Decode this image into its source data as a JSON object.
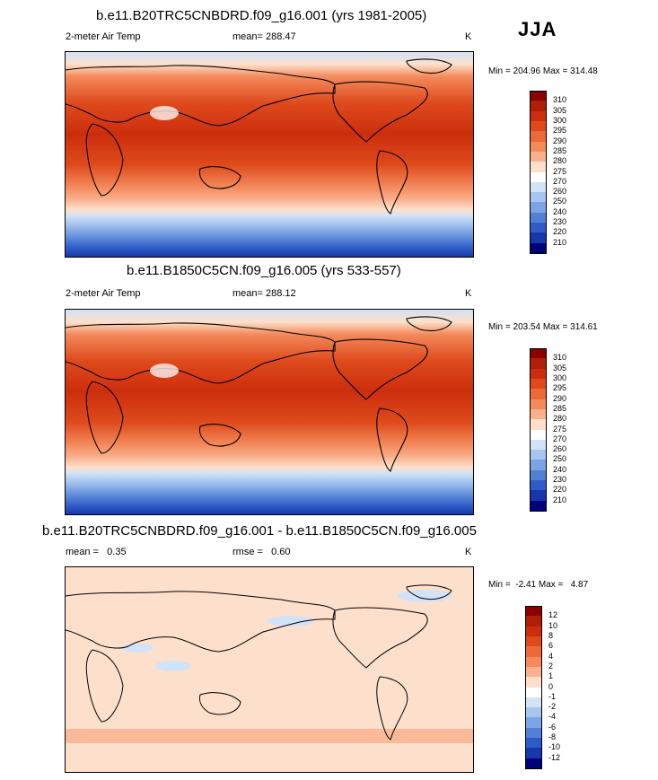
{
  "season": "JJA",
  "panels": [
    {
      "title": "b.e11.B20TRC5CNBDRD.f09_g16.001 (yrs 1981-2005)",
      "variable": "2-meter Air Temp",
      "mean_text": "mean= 288.47",
      "units": "K",
      "minmax": "Min = 204.96 Max = 314.48"
    },
    {
      "title": "b.e11.B1850C5CN.f09_g16.005 (yrs 533-557)",
      "variable": "2-meter Air Temp",
      "mean_text": "mean= 288.12",
      "units": "K",
      "minmax": "Min = 203.54 Max = 314.61"
    },
    {
      "title": "b.e11.B20TRC5CNBDRD.f09_g16.001 - b.e11.B1850C5CN.f09_g16.005",
      "mean_text": "mean =   0.35",
      "rmse_text": "rmse =   0.60",
      "units": "K",
      "minmax": "Min =  -2.41 Max =   4.87"
    }
  ],
  "chart_data": [
    {
      "type": "heatmap",
      "title": "b.e11.B20TRC5CNBDRD.f09_g16.001 (yrs 1981-2005)",
      "variable": "2-meter Air Temp",
      "units": "K",
      "mean": 288.47,
      "min": 204.96,
      "max": 314.48,
      "colorbar_levels": [
        "310",
        "305",
        "300",
        "295",
        "290",
        "285",
        "280",
        "275",
        "270",
        "260",
        "250",
        "240",
        "230",
        "220",
        "210"
      ],
      "colorbar_colors": [
        "#8b0000",
        "#b01e06",
        "#cc2e0d",
        "#de4a1c",
        "#ec6a3a",
        "#f48a5c",
        "#f9b08d",
        "#fde0cb",
        "#ffffff",
        "#d2e2f7",
        "#a7c6ef",
        "#7ca4e3",
        "#5280d5",
        "#2f5bc6",
        "#1638aa",
        "#00007a"
      ]
    },
    {
      "type": "heatmap",
      "title": "b.e11.B1850C5CN.f09_g16.005 (yrs 533-557)",
      "variable": "2-meter Air Temp",
      "units": "K",
      "mean": 288.12,
      "min": 203.54,
      "max": 314.61,
      "colorbar_levels": [
        "310",
        "305",
        "300",
        "295",
        "290",
        "285",
        "280",
        "275",
        "270",
        "260",
        "250",
        "240",
        "230",
        "220",
        "210"
      ],
      "colorbar_colors": [
        "#8b0000",
        "#b01e06",
        "#cc2e0d",
        "#de4a1c",
        "#ec6a3a",
        "#f48a5c",
        "#f9b08d",
        "#fde0cb",
        "#ffffff",
        "#d2e2f7",
        "#a7c6ef",
        "#7ca4e3",
        "#5280d5",
        "#2f5bc6",
        "#1638aa",
        "#00007a"
      ]
    },
    {
      "type": "heatmap",
      "title": "b.e11.B20TRC5CNBDRD.f09_g16.001 - b.e11.B1850C5CN.f09_g16.005",
      "units": "K",
      "mean": 0.35,
      "rmse": 0.6,
      "min": -2.41,
      "max": 4.87,
      "colorbar_levels": [
        "12",
        "10",
        "8",
        "6",
        "4",
        "2",
        "1",
        "0",
        "-1",
        "-2",
        "-4",
        "-6",
        "-8",
        "-10",
        "-12"
      ],
      "colorbar_colors": [
        "#8b0000",
        "#b01e06",
        "#cc2e0d",
        "#de4a1c",
        "#ec6a3a",
        "#f48a5c",
        "#f9b08d",
        "#fde0cb",
        "#ffffff",
        "#d2e2f7",
        "#a7c6ef",
        "#7ca4e3",
        "#5280d5",
        "#2f5bc6",
        "#1638aa",
        "#00007a"
      ]
    }
  ]
}
